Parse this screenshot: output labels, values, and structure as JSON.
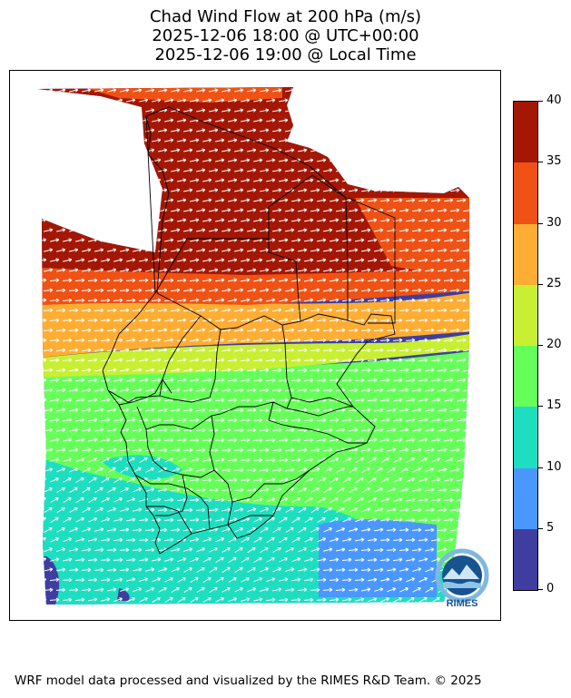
{
  "title": {
    "line1": "Chad Wind Flow at 200 hPa (m/s)",
    "line2": "2025-12-06 18:00 @ UTC+00:00",
    "line3": "2025-12-06 19:00 @ Local Time"
  },
  "colorbar": {
    "levels": [
      {
        "min": 0,
        "max": 5,
        "color": "#3f3ea0"
      },
      {
        "min": 5,
        "max": 10,
        "color": "#4a98ff"
      },
      {
        "min": 10,
        "max": 15,
        "color": "#1ddfc0"
      },
      {
        "min": 15,
        "max": 20,
        "color": "#66ff5a"
      },
      {
        "min": 20,
        "max": 25,
        "color": "#c8ef32"
      },
      {
        "min": 25,
        "max": 30,
        "color": "#ffad33"
      },
      {
        "min": 30,
        "max": 35,
        "color": "#ef5214"
      },
      {
        "min": 35,
        "max": 40,
        "color": "#a31704"
      }
    ],
    "tick_labels": [
      "0",
      "5",
      "10",
      "15",
      "20",
      "25",
      "30",
      "35",
      "40"
    ]
  },
  "logo": {
    "text": "RIMES"
  },
  "footer": "WRF model data processed and visualized by the RIMES R&D Team. © 2025"
}
